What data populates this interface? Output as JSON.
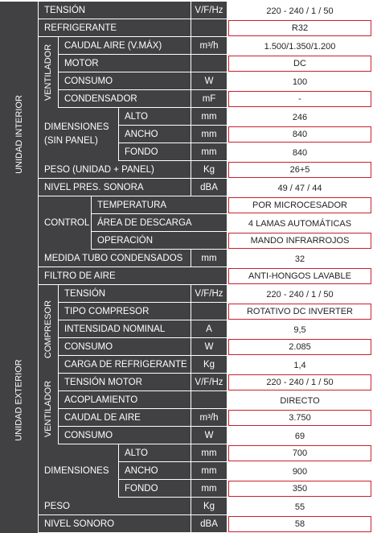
{
  "groups": {
    "interior": "UNIDAD INTERIOR",
    "exterior": "UNIDAD EXTERIOR",
    "ventilador_int": "VENTILADOR",
    "ventilador_ext": "VENTILADOR",
    "compresor": "COMPRESOR",
    "dimensiones_int": "DIMENSIONES\n(SIN PANEL)",
    "control": "CONTROL",
    "dimensiones_ext": "DIMENSIONES"
  },
  "rows": [
    {
      "label": "TENSIÓN",
      "unit": "V/F/Hz",
      "value": "220 - 240 / 1 / 50",
      "hl": false
    },
    {
      "label": "REFRIGERANTE",
      "unit": "",
      "value": "R32",
      "hl": true
    },
    {
      "label": "CAUDAL AIRE (V.MÁX)",
      "unit": "m³/h",
      "value": "1.500/1.350/1.200",
      "hl": false
    },
    {
      "label": "MOTOR",
      "unit": "",
      "value": "DC",
      "hl": true
    },
    {
      "label": "CONSUMO",
      "unit": "W",
      "value": "100",
      "hl": false
    },
    {
      "label": "CONDENSADOR",
      "unit": "mF",
      "value": "-",
      "hl": true
    },
    {
      "label": "ALTO",
      "unit": "mm",
      "value": "246",
      "hl": false
    },
    {
      "label": "ANCHO",
      "unit": "mm",
      "value": "840",
      "hl": true
    },
    {
      "label": "FONDO",
      "unit": "mm",
      "value": "840",
      "hl": false
    },
    {
      "label": "PESO (UNIDAD + PANEL)",
      "unit": "Kg",
      "value": "26+5",
      "hl": true
    },
    {
      "label": "NIVEL PRES. SONORA",
      "unit": "dBA",
      "value": "49 / 47 / 44",
      "hl": false
    },
    {
      "label": "TEMPERATURA",
      "unit": "",
      "value": "POR MICROCESADOR",
      "hl": true
    },
    {
      "label": "ÁREA DE DESCARGA",
      "unit": "",
      "value": "4 LAMAS AUTOMÁTICAS",
      "hl": false
    },
    {
      "label": "OPERACIÓN",
      "unit": "",
      "value": "MANDO INFRARROJOS",
      "hl": true
    },
    {
      "label": "MEDIDA TUBO CONDENSADOS",
      "unit": "mm",
      "value": "32",
      "hl": false
    },
    {
      "label": "FILTRO DE AIRE",
      "unit": "",
      "value": "ANTI-HONGOS LAVABLE",
      "hl": true
    },
    {
      "label": "TENSIÓN",
      "unit": "V/F/Hz",
      "value": "220 - 240 / 1 / 50",
      "hl": false
    },
    {
      "label": "TIPO COMPRESOR",
      "unit": "",
      "value": "ROTATIVO DC INVERTER",
      "hl": true
    },
    {
      "label": "INTENSIDAD NOMINAL",
      "unit": "A",
      "value": "9,5",
      "hl": false
    },
    {
      "label": "CONSUMO",
      "unit": "W",
      "value": "2.085",
      "hl": true
    },
    {
      "label": "CARGA DE REFRIGERANTE",
      "unit": "Kg",
      "value": "1,4",
      "hl": false
    },
    {
      "label": "TENSIÓN MOTOR",
      "unit": "V/F/Hz",
      "value": "220 - 240 / 1 / 50",
      "hl": true
    },
    {
      "label": "ACOPLAMIENTO",
      "unit": "",
      "value": "DIRECTO",
      "hl": false
    },
    {
      "label": "CAUDAL DE AIRE",
      "unit": "m³/h",
      "value": "3.750",
      "hl": true
    },
    {
      "label": "CONSUMO",
      "unit": "W",
      "value": "69",
      "hl": false
    },
    {
      "label": "ALTO",
      "unit": "mm",
      "value": "700",
      "hl": true
    },
    {
      "label": "ANCHO",
      "unit": "mm",
      "value": "900",
      "hl": false
    },
    {
      "label": "FONDO",
      "unit": "mm",
      "value": "350",
      "hl": true
    },
    {
      "label": "PESO",
      "unit": "Kg",
      "value": "55",
      "hl": false
    },
    {
      "label": "NIVEL SONORO",
      "unit": "dBA",
      "value": "58",
      "hl": true
    }
  ],
  "colors": {
    "header_bg": "#414042",
    "value_bg": "#ffffff",
    "highlight_border": "#c8202e",
    "text_light": "#ffffff",
    "text_dark": "#231f20"
  }
}
